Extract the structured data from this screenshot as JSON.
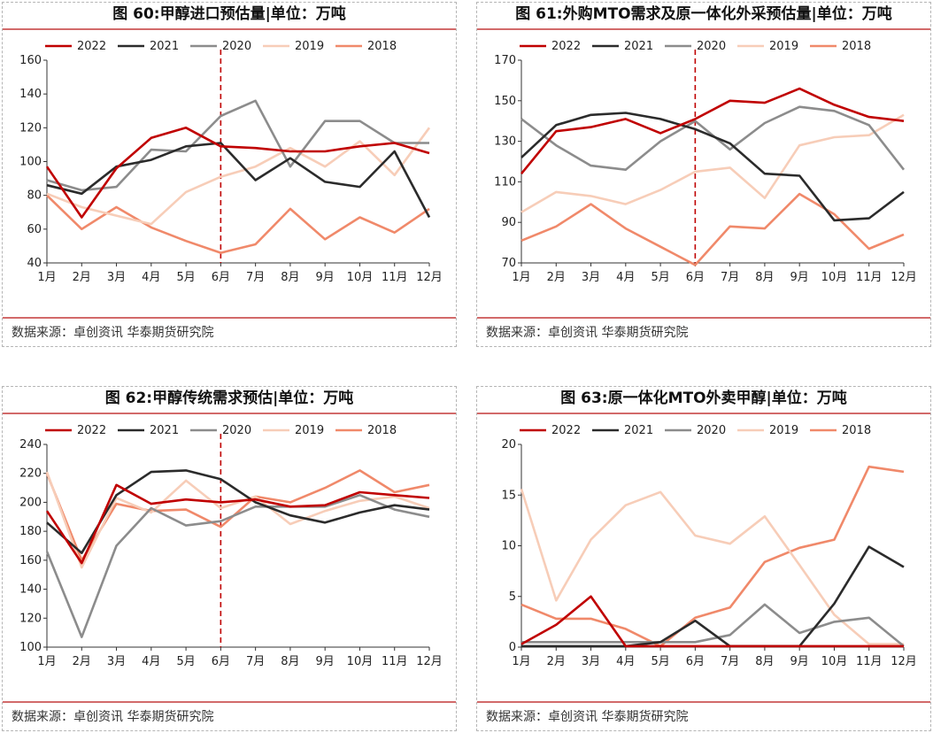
{
  "chart_data": [
    {
      "type": "line",
      "title": "图 60:甲醇进口预估量|单位：万吨",
      "source": "数据来源：卓创资讯 华泰期货研究院",
      "categories": [
        "1月",
        "2月",
        "3月",
        "4月",
        "5月",
        "6月",
        "7月",
        "8月",
        "9月",
        "10月",
        "11月",
        "12月"
      ],
      "ylim": [
        40,
        160
      ],
      "yticks": [
        40,
        60,
        80,
        100,
        120,
        140,
        160
      ],
      "vline_category": "6月",
      "series": [
        {
          "name": "2022",
          "color": "#c00000",
          "values": [
            97,
            67,
            96,
            114,
            120,
            109,
            108,
            106,
            106,
            109,
            111,
            105
          ]
        },
        {
          "name": "2021",
          "color": "#2b2b2b",
          "values": [
            86,
            81,
            97,
            101,
            109,
            111,
            89,
            102,
            88,
            85,
            106,
            67
          ]
        },
        {
          "name": "2020",
          "color": "#8c8c8c",
          "values": [
            89,
            83,
            85,
            107,
            106,
            127,
            136,
            97,
            124,
            124,
            111,
            111
          ]
        },
        {
          "name": "2019",
          "color": "#f7cdb8",
          "values": [
            81,
            73,
            68,
            63,
            82,
            91,
            97,
            108,
            97,
            112,
            92,
            120
          ]
        },
        {
          "name": "2018",
          "color": "#f0896a",
          "values": [
            80,
            60,
            73,
            61,
            53,
            46,
            51,
            72,
            54,
            67,
            58,
            72
          ]
        }
      ]
    },
    {
      "type": "line",
      "title": "图 61:外购MTO需求及原一体化外采预估量|单位：万吨",
      "source": "数据来源：卓创资讯 华泰期货研究院",
      "categories": [
        "1月",
        "2月",
        "3月",
        "4月",
        "5月",
        "6月",
        "7月",
        "8月",
        "9月",
        "10月",
        "11月",
        "12月"
      ],
      "ylim": [
        70,
        170
      ],
      "yticks": [
        70,
        90,
        110,
        130,
        150,
        170
      ],
      "vline_category": "6月",
      "series": [
        {
          "name": "2022",
          "color": "#c00000",
          "values": [
            114,
            135,
            137,
            141,
            134,
            141,
            150,
            149,
            156,
            148,
            142,
            140
          ]
        },
        {
          "name": "2021",
          "color": "#2b2b2b",
          "values": [
            122,
            138,
            143,
            144,
            141,
            136,
            129,
            114,
            113,
            91,
            92,
            105
          ]
        },
        {
          "name": "2020",
          "color": "#8c8c8c",
          "values": [
            141,
            128,
            118,
            116,
            130,
            140,
            126,
            139,
            147,
            145,
            138,
            116
          ]
        },
        {
          "name": "2019",
          "color": "#f7cdb8",
          "values": [
            95,
            105,
            103,
            99,
            106,
            115,
            117,
            102,
            128,
            132,
            133,
            143
          ]
        },
        {
          "name": "2018",
          "color": "#f0896a",
          "values": [
            81,
            88,
            99,
            87,
            78,
            69,
            88,
            87,
            104,
            94,
            77,
            84
          ]
        }
      ]
    },
    {
      "type": "line",
      "title": "图 62:甲醇传统需求预估|单位：万吨",
      "source": "数据来源：卓创资讯 华泰期货研究院",
      "categories": [
        "1月",
        "2月",
        "3月",
        "4月",
        "5月",
        "6月",
        "7月",
        "8月",
        "9月",
        "10月",
        "11月",
        "12月"
      ],
      "ylim": [
        100,
        240
      ],
      "yticks": [
        100,
        120,
        140,
        160,
        180,
        200,
        220,
        240
      ],
      "vline_category": "6月",
      "series": [
        {
          "name": "2022",
          "color": "#c00000",
          "values": [
            194,
            158,
            212,
            199,
            202,
            200,
            202,
            197,
            198,
            207,
            205,
            203
          ]
        },
        {
          "name": "2021",
          "color": "#2b2b2b",
          "values": [
            186,
            165,
            205,
            221,
            222,
            216,
            200,
            191,
            186,
            193,
            198,
            195
          ]
        },
        {
          "name": "2020",
          "color": "#8c8c8c",
          "values": [
            166,
            107,
            170,
            196,
            184,
            187,
            197,
            197,
            197,
            205,
            195,
            190
          ]
        },
        {
          "name": "2019",
          "color": "#f7cdb8",
          "values": [
            221,
            155,
            203,
            193,
            215,
            196,
            204,
            185,
            194,
            201,
            204,
            196
          ]
        },
        {
          "name": "2018",
          "color": "#f0896a",
          "values": [
            220,
            160,
            199,
            194,
            195,
            183,
            204,
            200,
            210,
            222,
            207,
            212
          ]
        }
      ]
    },
    {
      "type": "line",
      "title": "图 63:原一体化MTO外卖甲醇|单位：万吨",
      "source": "数据来源：卓创资讯 华泰期货研究院",
      "categories": [
        "1月",
        "2月",
        "3月",
        "4月",
        "5月",
        "6月",
        "7月",
        "8月",
        "9月",
        "10月",
        "11月",
        "12月"
      ],
      "ylim": [
        0,
        20
      ],
      "yticks": [
        0,
        5,
        10,
        15,
        20
      ],
      "vline_category": "",
      "series": [
        {
          "name": "2022",
          "color": "#c00000",
          "values": [
            0.3,
            2.2,
            5.0,
            0.1,
            0.1,
            0.1,
            0.1,
            0.1,
            0.1,
            0.1,
            0.1,
            0.1
          ]
        },
        {
          "name": "2021",
          "color": "#2b2b2b",
          "values": [
            0.1,
            0.1,
            0.1,
            0.1,
            0.5,
            2.6,
            0.1,
            0.1,
            0.1,
            4.3,
            9.9,
            7.9
          ]
        },
        {
          "name": "2020",
          "color": "#8c8c8c",
          "values": [
            0.5,
            0.5,
            0.5,
            0.5,
            0.5,
            0.5,
            1.2,
            4.2,
            1.4,
            2.5,
            2.9,
            0.1
          ]
        },
        {
          "name": "2019",
          "color": "#f7cdb8",
          "values": [
            15.6,
            4.6,
            10.6,
            14.0,
            15.3,
            11.0,
            10.2,
            12.9,
            8.1,
            3.2,
            0.3,
            0.3
          ]
        },
        {
          "name": "2018",
          "color": "#f0896a",
          "values": [
            4.2,
            2.8,
            2.8,
            1.8,
            0.1,
            2.9,
            3.9,
            8.4,
            9.8,
            10.6,
            17.8,
            17.3
          ]
        }
      ]
    }
  ]
}
